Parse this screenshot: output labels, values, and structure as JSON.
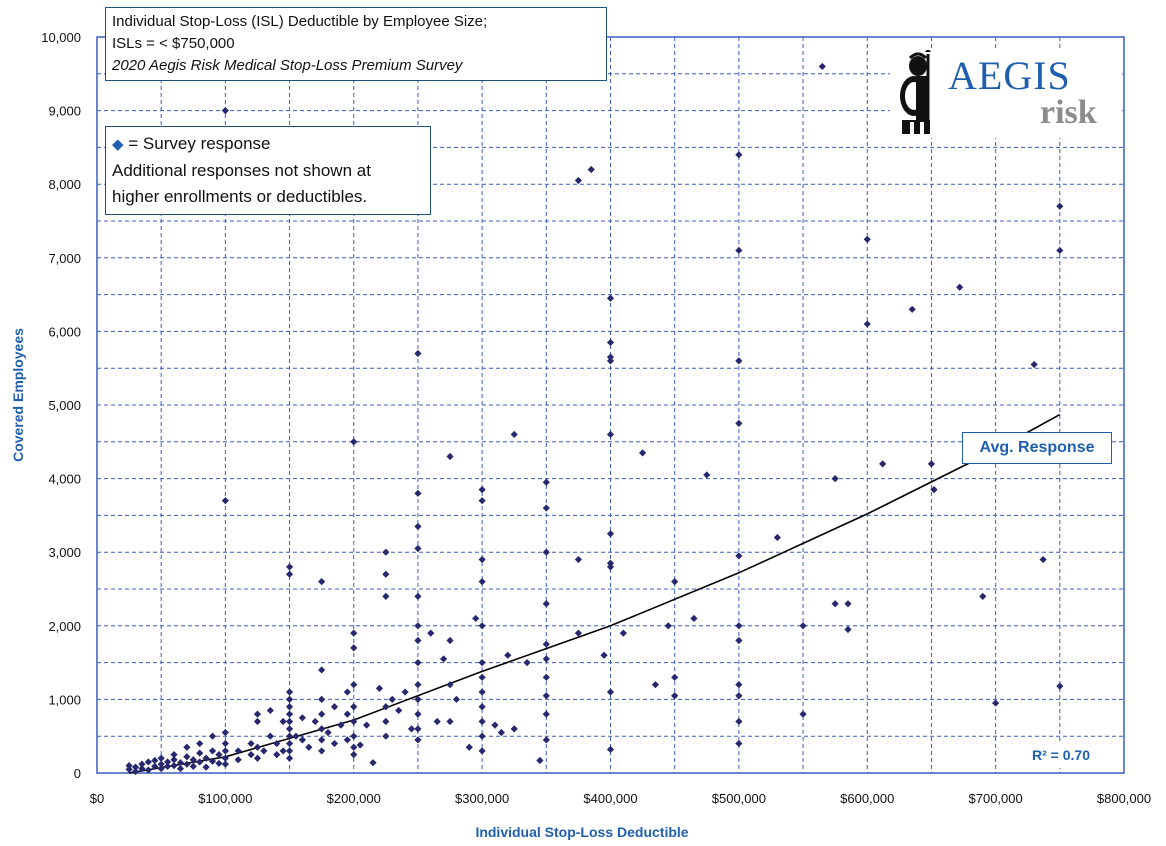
{
  "title_box": {
    "line1": "Individual Stop-Loss (ISL) Deductible by Employee Size;",
    "line2": "ISLs = < $750,000",
    "line3": "2020 Aegis Risk Medical Stop-Loss Premium Survey"
  },
  "legend_box": {
    "symbol": "◆",
    "line1": "= Survey response",
    "line2": "Additional responses not shown at",
    "line3": "higher enrollments or deductibles."
  },
  "logo": {
    "name": "AEGIS",
    "sub": "risk",
    "icon": "aegis-warrior-icon"
  },
  "trend_label": "Avg. Response",
  "r_squared": "R² = 0.70",
  "colors": {
    "marker": "#27286e",
    "grid": "#3a5fbf",
    "trend": "#000000",
    "accent": "#1f5fae"
  },
  "chart_data": {
    "type": "scatter",
    "xlabel": "Individual Stop-Loss Deductible",
    "ylabel": "Covered Employees",
    "xlim": [
      0,
      800000
    ],
    "ylim": [
      0,
      10000
    ],
    "x_ticks": [
      0,
      100000,
      200000,
      300000,
      400000,
      500000,
      600000,
      700000,
      800000
    ],
    "x_tick_labels": [
      "$0",
      "$100,000",
      "$200,000",
      "$300,000",
      "$400,000",
      "$500,000",
      "$600,000",
      "$700,000",
      "$800,000"
    ],
    "y_ticks": [
      0,
      1000,
      2000,
      3000,
      4000,
      5000,
      6000,
      7000,
      8000,
      9000,
      10000
    ],
    "y_tick_labels": [
      "0",
      "1,000",
      "2,000",
      "3,000",
      "4,000",
      "5,000",
      "6,000",
      "7,000",
      "8,000",
      "9,000",
      "10,000"
    ],
    "grid": "dashed, every 50,000 on x and 500 on y",
    "trendline": {
      "name": "Avg. Response",
      "points": [
        [
          25000,
          0
        ],
        [
          100000,
          220
        ],
        [
          200000,
          720
        ],
        [
          300000,
          1380
        ],
        [
          400000,
          2000
        ],
        [
          500000,
          2720
        ],
        [
          600000,
          3520
        ],
        [
          700000,
          4390
        ],
        [
          750000,
          4870
        ]
      ]
    },
    "series": [
      {
        "points": [
          [
            25000,
            100
          ],
          [
            25000,
            50
          ],
          [
            30000,
            80
          ],
          [
            30000,
            20
          ],
          [
            35000,
            120
          ],
          [
            35000,
            60
          ],
          [
            40000,
            150
          ],
          [
            40000,
            40
          ],
          [
            45000,
            90
          ],
          [
            45000,
            170
          ],
          [
            50000,
            200
          ],
          [
            50000,
            120
          ],
          [
            50000,
            60
          ],
          [
            55000,
            150
          ],
          [
            55000,
            90
          ],
          [
            60000,
            250
          ],
          [
            60000,
            180
          ],
          [
            60000,
            100
          ],
          [
            65000,
            140
          ],
          [
            65000,
            60
          ],
          [
            70000,
            350
          ],
          [
            70000,
            220
          ],
          [
            70000,
            120
          ],
          [
            75000,
            180
          ],
          [
            75000,
            90
          ],
          [
            80000,
            400
          ],
          [
            80000,
            270
          ],
          [
            80000,
            150
          ],
          [
            85000,
            200
          ],
          [
            85000,
            80
          ],
          [
            90000,
            500
          ],
          [
            90000,
            300
          ],
          [
            90000,
            160
          ],
          [
            95000,
            250
          ],
          [
            95000,
            130
          ],
          [
            100000,
            9000
          ],
          [
            100000,
            3700
          ],
          [
            100000,
            550
          ],
          [
            100000,
            400
          ],
          [
            100000,
            300
          ],
          [
            100000,
            200
          ],
          [
            100000,
            120
          ],
          [
            110000,
            300
          ],
          [
            110000,
            180
          ],
          [
            120000,
            400
          ],
          [
            120000,
            250
          ],
          [
            125000,
            800
          ],
          [
            125000,
            700
          ],
          [
            125000,
            350
          ],
          [
            125000,
            200
          ],
          [
            130000,
            300
          ],
          [
            135000,
            850
          ],
          [
            135000,
            500
          ],
          [
            140000,
            400
          ],
          [
            140000,
            250
          ],
          [
            145000,
            700
          ],
          [
            145000,
            300
          ],
          [
            150000,
            2800
          ],
          [
            150000,
            2700
          ],
          [
            150000,
            1100
          ],
          [
            150000,
            1000
          ],
          [
            150000,
            900
          ],
          [
            150000,
            800
          ],
          [
            150000,
            700
          ],
          [
            150000,
            600
          ],
          [
            150000,
            500
          ],
          [
            150000,
            400
          ],
          [
            150000,
            300
          ],
          [
            150000,
            200
          ],
          [
            155000,
            500
          ],
          [
            160000,
            750
          ],
          [
            160000,
            450
          ],
          [
            165000,
            350
          ],
          [
            170000,
            700
          ],
          [
            175000,
            2600
          ],
          [
            175000,
            1400
          ],
          [
            175000,
            1000
          ],
          [
            175000,
            800
          ],
          [
            175000,
            600
          ],
          [
            175000,
            450
          ],
          [
            175000,
            300
          ],
          [
            180000,
            550
          ],
          [
            185000,
            900
          ],
          [
            185000,
            400
          ],
          [
            190000,
            650
          ],
          [
            195000,
            1100
          ],
          [
            195000,
            800
          ],
          [
            195000,
            450
          ],
          [
            200000,
            4500
          ],
          [
            200000,
            1900
          ],
          [
            200000,
            1700
          ],
          [
            200000,
            1200
          ],
          [
            200000,
            900
          ],
          [
            200000,
            700
          ],
          [
            200000,
            500
          ],
          [
            200000,
            350
          ],
          [
            200000,
            250
          ],
          [
            205000,
            380
          ],
          [
            210000,
            650
          ],
          [
            215000,
            140
          ],
          [
            220000,
            1150
          ],
          [
            225000,
            3000
          ],
          [
            225000,
            2700
          ],
          [
            225000,
            2400
          ],
          [
            225000,
            900
          ],
          [
            225000,
            700
          ],
          [
            225000,
            500
          ],
          [
            230000,
            1000
          ],
          [
            235000,
            850
          ],
          [
            240000,
            1100
          ],
          [
            245000,
            600
          ],
          [
            250000,
            5700
          ],
          [
            250000,
            3800
          ],
          [
            250000,
            3350
          ],
          [
            250000,
            3050
          ],
          [
            250000,
            2400
          ],
          [
            250000,
            2000
          ],
          [
            250000,
            1800
          ],
          [
            250000,
            1500
          ],
          [
            250000,
            1200
          ],
          [
            250000,
            1000
          ],
          [
            250000,
            800
          ],
          [
            250000,
            600
          ],
          [
            250000,
            450
          ],
          [
            260000,
            1900
          ],
          [
            265000,
            700
          ],
          [
            270000,
            1550
          ],
          [
            275000,
            4300
          ],
          [
            275000,
            1800
          ],
          [
            275000,
            1200
          ],
          [
            275000,
            700
          ],
          [
            280000,
            1000
          ],
          [
            290000,
            350
          ],
          [
            295000,
            2100
          ],
          [
            300000,
            3850
          ],
          [
            300000,
            3700
          ],
          [
            300000,
            2900
          ],
          [
            300000,
            2600
          ],
          [
            300000,
            2000
          ],
          [
            300000,
            1500
          ],
          [
            300000,
            1300
          ],
          [
            300000,
            1100
          ],
          [
            300000,
            900
          ],
          [
            300000,
            700
          ],
          [
            300000,
            500
          ],
          [
            300000,
            300
          ],
          [
            310000,
            650
          ],
          [
            315000,
            550
          ],
          [
            320000,
            1600
          ],
          [
            325000,
            4600
          ],
          [
            325000,
            600
          ],
          [
            335000,
            1500
          ],
          [
            345000,
            170
          ],
          [
            350000,
            3950
          ],
          [
            350000,
            3600
          ],
          [
            350000,
            3000
          ],
          [
            350000,
            2300
          ],
          [
            350000,
            1750
          ],
          [
            350000,
            1550
          ],
          [
            350000,
            1300
          ],
          [
            350000,
            1050
          ],
          [
            350000,
            800
          ],
          [
            350000,
            450
          ],
          [
            375000,
            8050
          ],
          [
            375000,
            2900
          ],
          [
            375000,
            1900
          ],
          [
            385000,
            8200
          ],
          [
            395000,
            1600
          ],
          [
            400000,
            6450
          ],
          [
            400000,
            5850
          ],
          [
            400000,
            5650
          ],
          [
            400000,
            5600
          ],
          [
            400000,
            4600
          ],
          [
            400000,
            3250
          ],
          [
            400000,
            2850
          ],
          [
            400000,
            2800
          ],
          [
            400000,
            1100
          ],
          [
            400000,
            320
          ],
          [
            410000,
            1900
          ],
          [
            425000,
            4350
          ],
          [
            435000,
            1200
          ],
          [
            445000,
            2000
          ],
          [
            450000,
            2600
          ],
          [
            450000,
            1300
          ],
          [
            450000,
            1050
          ],
          [
            465000,
            2100
          ],
          [
            475000,
            4050
          ],
          [
            500000,
            8400
          ],
          [
            500000,
            7100
          ],
          [
            500000,
            5600
          ],
          [
            500000,
            4750
          ],
          [
            500000,
            2950
          ],
          [
            500000,
            2000
          ],
          [
            500000,
            1800
          ],
          [
            500000,
            1200
          ],
          [
            500000,
            1050
          ],
          [
            500000,
            700
          ],
          [
            500000,
            400
          ],
          [
            530000,
            3200
          ],
          [
            550000,
            2000
          ],
          [
            550000,
            800
          ],
          [
            565000,
            9600
          ],
          [
            575000,
            4000
          ],
          [
            575000,
            2300
          ],
          [
            585000,
            2300
          ],
          [
            585000,
            1950
          ],
          [
            600000,
            7250
          ],
          [
            600000,
            6100
          ],
          [
            612000,
            4200
          ],
          [
            635000,
            6300
          ],
          [
            650000,
            4200
          ],
          [
            652000,
            3850
          ],
          [
            672000,
            6600
          ],
          [
            690000,
            2400
          ],
          [
            700000,
            950
          ],
          [
            730000,
            5550
          ],
          [
            737000,
            2900
          ],
          [
            750000,
            7700
          ],
          [
            750000,
            7100
          ],
          [
            750000,
            1180
          ]
        ]
      }
    ]
  }
}
